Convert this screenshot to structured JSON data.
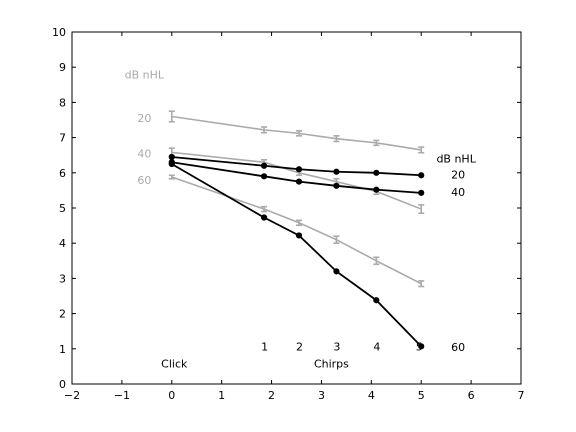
{
  "chart_data": {
    "type": "line",
    "xlim": [
      -2,
      7
    ],
    "ylim": [
      0,
      10
    ],
    "xticks": [
      -2,
      -1,
      0,
      1,
      2,
      3,
      4,
      5,
      6,
      7
    ],
    "yticks": [
      0,
      1,
      2,
      3,
      4,
      5,
      6,
      7,
      8,
      9,
      10
    ],
    "grid": false,
    "x_marker_labels": [
      "1",
      "2",
      "3",
      "4",
      "5"
    ],
    "x_marker_positions": [
      1.9,
      2.6,
      3.35,
      4.15,
      5.0
    ],
    "group_labels": {
      "click": "Click",
      "chirps": "Chirps"
    },
    "gray_legend": {
      "title": "dB nHL",
      "labels": [
        {
          "text": "20",
          "x": -0.55,
          "y": 7.55
        },
        {
          "text": "40",
          "x": -0.55,
          "y": 6.55
        },
        {
          "text": "60",
          "x": -0.55,
          "y": 5.8
        }
      ]
    },
    "black_legend": {
      "title": "dB nHL",
      "labels": [
        {
          "text": "20",
          "x": 5.5,
          "y": 5.95
        },
        {
          "text": "40",
          "x": 5.5,
          "y": 5.45
        },
        {
          "text": "60",
          "x": 5.5,
          "y": 1.05
        }
      ]
    },
    "series": [
      {
        "name": "",
        "color": "#aaaaaa",
        "marker": "errorbar",
        "x": [
          0,
          1.85,
          2.55,
          3.3,
          4.1,
          5.0
        ],
        "y": [
          7.6,
          7.22,
          7.12,
          6.97,
          6.85,
          6.65
        ],
        "err": [
          0.15,
          0.08,
          0.07,
          0.08,
          0.07,
          0.08
        ]
      },
      {
        "name": "",
        "color": "#aaaaaa",
        "marker": "errorbar",
        "x": [
          0,
          1.85,
          2.55,
          3.3,
          4.1,
          5.0
        ],
        "y": [
          6.58,
          6.3,
          6.0,
          5.75,
          5.47,
          4.97
        ],
        "err": [
          0.12,
          0.07,
          0.07,
          0.08,
          0.08,
          0.12
        ]
      },
      {
        "name": "",
        "color": "#aaaaaa",
        "marker": "errorbar",
        "x": [
          0,
          1.85,
          2.55,
          3.3,
          4.1,
          5.0
        ],
        "y": [
          5.88,
          4.97,
          4.58,
          4.1,
          3.5,
          2.85
        ],
        "err": [
          0.05,
          0.07,
          0.07,
          0.1,
          0.1,
          0.08
        ]
      },
      {
        "name": "",
        "color": "#000000",
        "marker": "dot",
        "x": [
          0,
          1.85,
          2.55,
          3.3,
          4.1,
          5.0
        ],
        "y": [
          6.45,
          6.2,
          6.1,
          6.03,
          6.0,
          5.93
        ]
      },
      {
        "name": "",
        "color": "#000000",
        "marker": "dot",
        "x": [
          0,
          1.85,
          2.55,
          3.3,
          4.1,
          5.0
        ],
        "y": [
          6.3,
          5.9,
          5.75,
          5.63,
          5.52,
          5.43
        ]
      },
      {
        "name": "",
        "color": "#000000",
        "marker": "dot",
        "x": [
          0,
          1.85,
          2.55,
          3.3,
          4.1,
          5.0
        ],
        "y": [
          6.25,
          4.73,
          4.22,
          3.2,
          2.38,
          1.07
        ]
      }
    ]
  }
}
